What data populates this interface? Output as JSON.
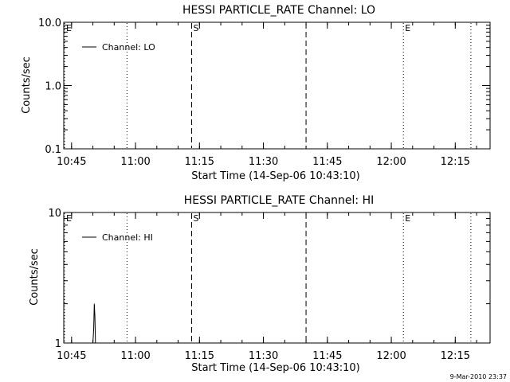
{
  "chart_data": [
    {
      "type": "line",
      "title": "HESSI PARTICLE_RATE Channel: LO",
      "xlabel": "Start Time (14-Sep-06 10:43:10)",
      "ylabel": "Counts/sec",
      "yscale": "log",
      "ylim": [
        0.1,
        10.0
      ],
      "xlim": [
        "10:43:10",
        "12:23:10"
      ],
      "yticks": [
        "0.1",
        "1.0",
        "10.0"
      ],
      "xticks": [
        "10:45",
        "11:00",
        "11:15",
        "11:30",
        "11:45",
        "12:00",
        "12:15"
      ],
      "legend": {
        "position": "top-left",
        "entries": [
          "Channel: LO"
        ]
      },
      "series": [
        {
          "name": "Channel: LO",
          "points": []
        }
      ],
      "markers": [
        {
          "time": "10:43:10",
          "style": "dotted",
          "label": "E"
        },
        {
          "time": "10:58:00",
          "style": "dotted",
          "label": ""
        },
        {
          "time": "11:13:10",
          "style": "dashed",
          "label": "S"
        },
        {
          "time": "11:40:00",
          "style": "dashed",
          "label": ""
        },
        {
          "time": "12:02:50",
          "style": "dotted",
          "label": "E"
        },
        {
          "time": "12:18:40",
          "style": "dotted",
          "label": ""
        }
      ]
    },
    {
      "type": "line",
      "title": "HESSI PARTICLE_RATE Channel: HI",
      "xlabel": "Start Time (14-Sep-06 10:43:10)",
      "ylabel": "Counts/sec",
      "yscale": "log",
      "ylim": [
        1,
        10
      ],
      "xlim": [
        "10:43:10",
        "12:23:10"
      ],
      "yticks": [
        "1",
        "10"
      ],
      "xticks": [
        "10:45",
        "11:00",
        "11:15",
        "11:30",
        "11:45",
        "12:00",
        "12:15"
      ],
      "legend": {
        "position": "top-left",
        "entries": [
          "Channel: HI"
        ]
      },
      "series": [
        {
          "name": "Channel: HI",
          "points": [
            {
              "time": "10:50:00",
              "value": 1.0
            },
            {
              "time": "10:50:12",
              "value": 1.3
            },
            {
              "time": "10:50:20",
              "value": 2.0
            },
            {
              "time": "10:50:28",
              "value": 1.6
            },
            {
              "time": "10:50:36",
              "value": 1.0
            }
          ]
        }
      ],
      "markers": [
        {
          "time": "10:43:10",
          "style": "dotted",
          "label": "E"
        },
        {
          "time": "10:58:00",
          "style": "dotted",
          "label": ""
        },
        {
          "time": "11:13:10",
          "style": "dashed",
          "label": "S"
        },
        {
          "time": "11:40:00",
          "style": "dashed",
          "label": ""
        },
        {
          "time": "12:02:50",
          "style": "dotted",
          "label": "E"
        },
        {
          "time": "12:18:40",
          "style": "dotted",
          "label": ""
        }
      ]
    }
  ],
  "footer": {
    "timestamp": "9-Mar-2010 23:37"
  }
}
